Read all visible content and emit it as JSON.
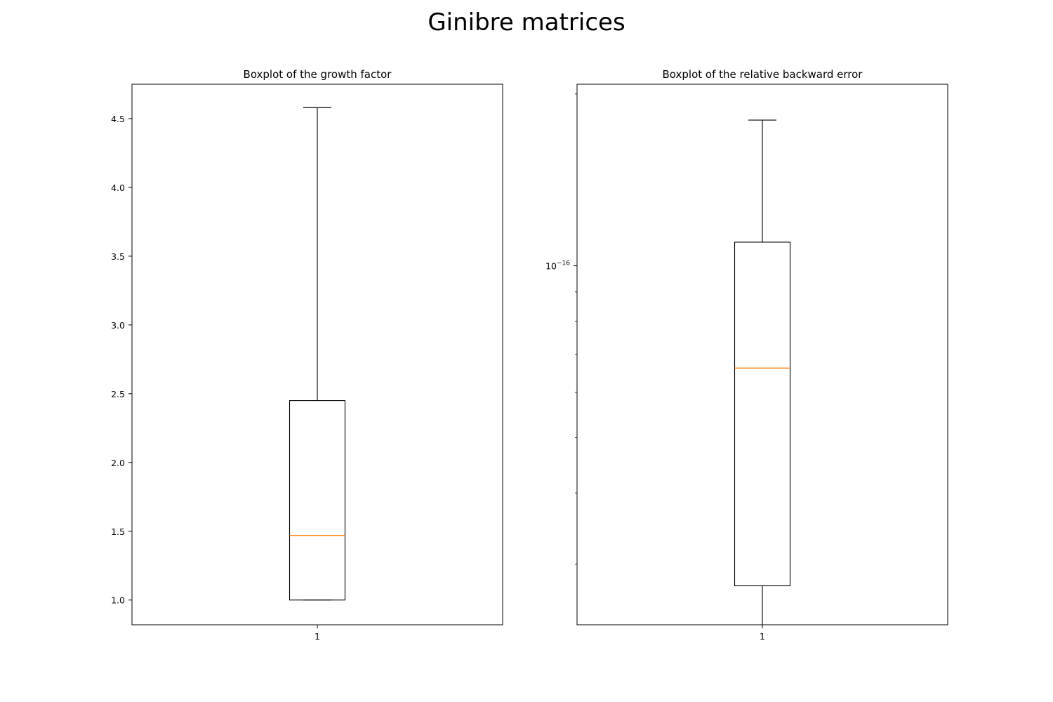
{
  "suptitle": "Ginibre matrices",
  "colors": {
    "box": "#000000",
    "median": "#ff7f0e",
    "axes": "#000000"
  },
  "chart_data": [
    {
      "type": "box",
      "title": "Boxplot of the growth factor",
      "xlabel": "",
      "ylabel": "",
      "yscale": "linear",
      "ylim": [
        0.82,
        4.75
      ],
      "yticks": [
        1.0,
        1.5,
        2.0,
        2.5,
        3.0,
        3.5,
        4.0,
        4.5
      ],
      "ytick_labels": [
        "1.0",
        "1.5",
        "2.0",
        "2.5",
        "3.0",
        "3.5",
        "4.0",
        "4.5"
      ],
      "categories": [
        "1"
      ],
      "boxes": [
        {
          "label": "1",
          "whisker_low": 1.0,
          "q1": 1.0,
          "median": 1.47,
          "q3": 2.45,
          "whisker_high": 4.58
        }
      ],
      "grid": false
    },
    {
      "type": "box",
      "title": "Boxplot of the relative backward error",
      "xlabel": "",
      "ylabel": "",
      "yscale": "log",
      "ylim": [
        2.35e-17,
        2.08e-16
      ],
      "yticks": [
        1e-16
      ],
      "ytick_labels": [
        "10^-16"
      ],
      "minor_yticks": [
        3e-17,
        4e-17,
        5e-17,
        6e-17,
        7e-17,
        8e-17,
        9e-17,
        2e-16
      ],
      "categories": [
        "1"
      ],
      "boxes": [
        {
          "label": "1",
          "whisker_low": 2.35e-17,
          "q1": 2.75e-17,
          "median": 6.62e-17,
          "q3": 1.1e-16,
          "whisker_high": 1.8e-16
        }
      ],
      "grid": false
    }
  ]
}
